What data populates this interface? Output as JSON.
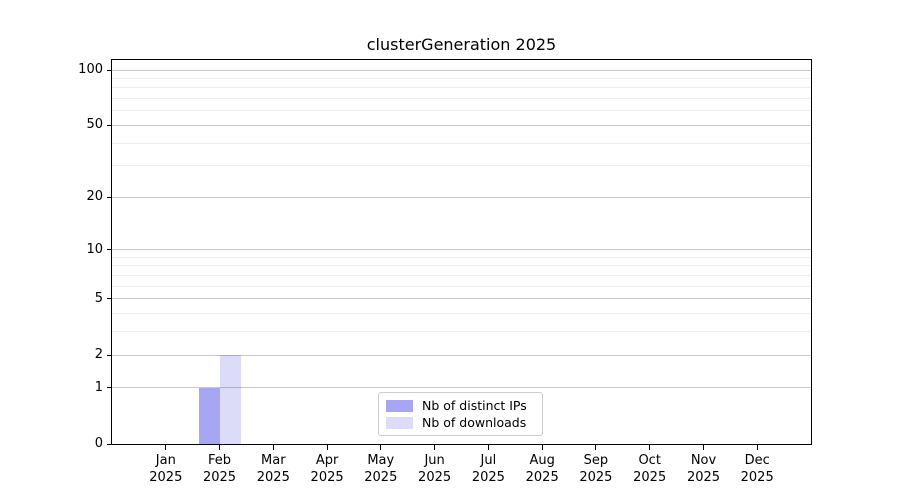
{
  "title": "clusterGeneration 2025",
  "chart_data": {
    "type": "bar",
    "title": "clusterGeneration 2025",
    "categories": [
      "Jan 2025",
      "Feb 2025",
      "Mar 2025",
      "Apr 2025",
      "May 2025",
      "Jun 2025",
      "Jul 2025",
      "Aug 2025",
      "Sep 2025",
      "Oct 2025",
      "Nov 2025",
      "Dec 2025"
    ],
    "series": [
      {
        "name": "Nb of distinct IPs",
        "color": "#a6a6f2",
        "values": [
          0,
          1,
          0,
          0,
          0,
          0,
          0,
          0,
          0,
          0,
          0,
          0
        ]
      },
      {
        "name": "Nb of downloads",
        "color": "#dcdcf8",
        "values": [
          0,
          2,
          0,
          0,
          0,
          0,
          0,
          0,
          0,
          0,
          0,
          0
        ]
      }
    ],
    "xlabel": "",
    "ylabel": "",
    "y_scale": "log10(1+x)",
    "y_major_ticks": [
      0,
      1,
      2,
      5,
      10,
      20,
      50,
      100
    ],
    "y_minor_gridlines": [
      3,
      4,
      6,
      7,
      8,
      9,
      30,
      40,
      60,
      70,
      80,
      90
    ],
    "ylim": [
      0,
      111
    ],
    "grid": "major and minor horizontal gridlines, drawn over bars",
    "legend_position": "lower center"
  },
  "styles": {
    "major_grid_color": "rgba(0,0,0,0.22)",
    "minor_grid_color": "rgba(0,0,0,0.07)",
    "axis_color": "#000000",
    "background": "#ffffff",
    "legend_border": "#cccccc"
  }
}
